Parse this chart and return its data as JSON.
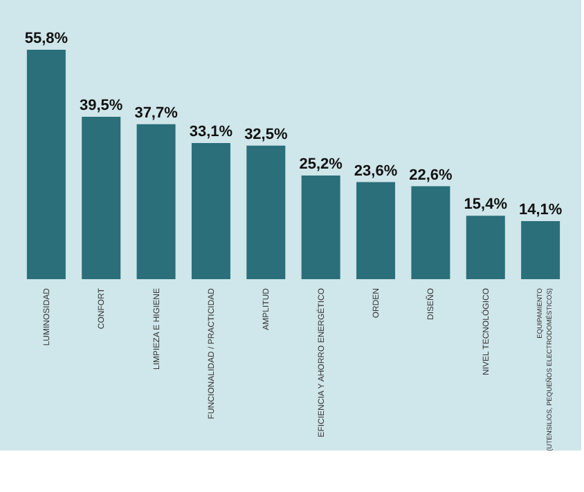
{
  "chart_data": {
    "type": "bar",
    "categories": [
      "LUMINOSIDAD",
      "CONFORT",
      "LIMPIEZA E HIGIENE",
      "FUNCIONALIDAD / PRACTICIDAD",
      "AMPLITUD",
      "EFICIENCIA Y AHORRO ENERGÉTICO",
      "ORDEN",
      "DISEÑO",
      "NIVEL TECNOLÓGICO",
      "EQUIPAMIENTO\n(UTENSILIOS, PEQUEÑOS ELECTRODOMÉSTICOS)"
    ],
    "values": [
      55.8,
      39.5,
      37.7,
      33.1,
      32.5,
      25.2,
      23.6,
      22.6,
      15.4,
      14.1
    ],
    "value_labels": [
      "55,8%",
      "39,5%",
      "37,7%",
      "33,1%",
      "32,5%",
      "25,2%",
      "23,6%",
      "22,6%",
      "15,4%",
      "14,1%"
    ],
    "color": "#2a6f7a",
    "grid": false
  }
}
